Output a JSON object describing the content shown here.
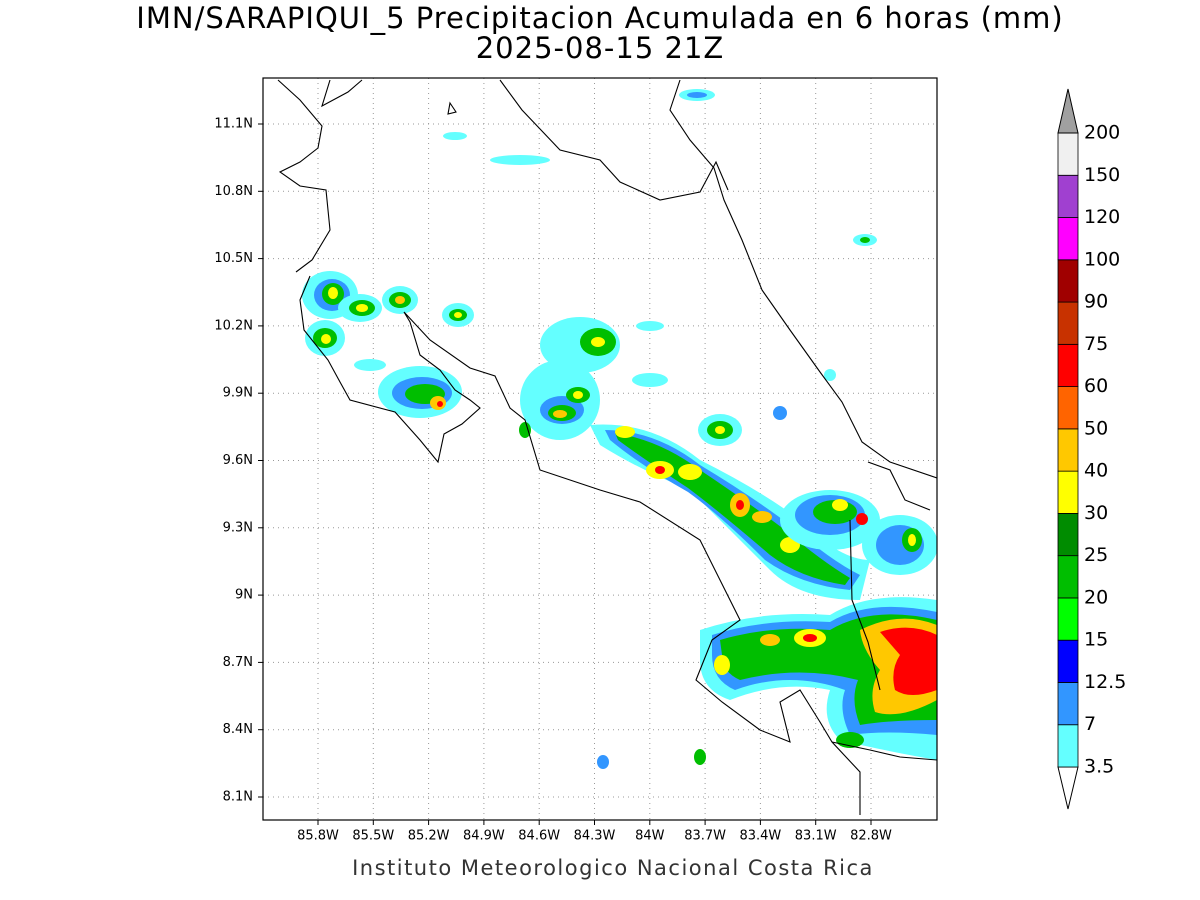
{
  "title": "IMN/SARAPIQUI_5 Precipitacion Acumulada en 6 horas (mm)",
  "subtitle": "2025-08-15 21Z",
  "map": {
    "lat_ticks": [
      "11.1N",
      "10.8N",
      "10.5N",
      "10.2N",
      "9.9N",
      "9.6N",
      "9.3N",
      "9N",
      "8.7N",
      "8.4N",
      "8.1N"
    ],
    "lon_ticks": [
      "85.8W",
      "85.5W",
      "85.2W",
      "84.9W",
      "84.6W",
      "84.3W",
      "84W",
      "83.7W",
      "83.4W",
      "83.1W",
      "82.8W"
    ]
  },
  "colorbar": {
    "labels": [
      "3.5",
      "7",
      "12.5",
      "15",
      "20",
      "25",
      "30",
      "40",
      "50",
      "60",
      "75",
      "90",
      "100",
      "120",
      "150",
      "200"
    ],
    "colors": [
      "#ffffff",
      "#64ffff",
      "#3296ff",
      "#0000ff",
      "#00ff00",
      "#00be00",
      "#008c00",
      "#ffff00",
      "#ffc800",
      "#ff6400",
      "#ff0000",
      "#c83200",
      "#a00000",
      "#ff00ff",
      "#a040d0",
      "#f0f0f0",
      "#a0a0a0"
    ]
  },
  "footer": "Instituto Meteorologico Nacional Costa Rica"
}
